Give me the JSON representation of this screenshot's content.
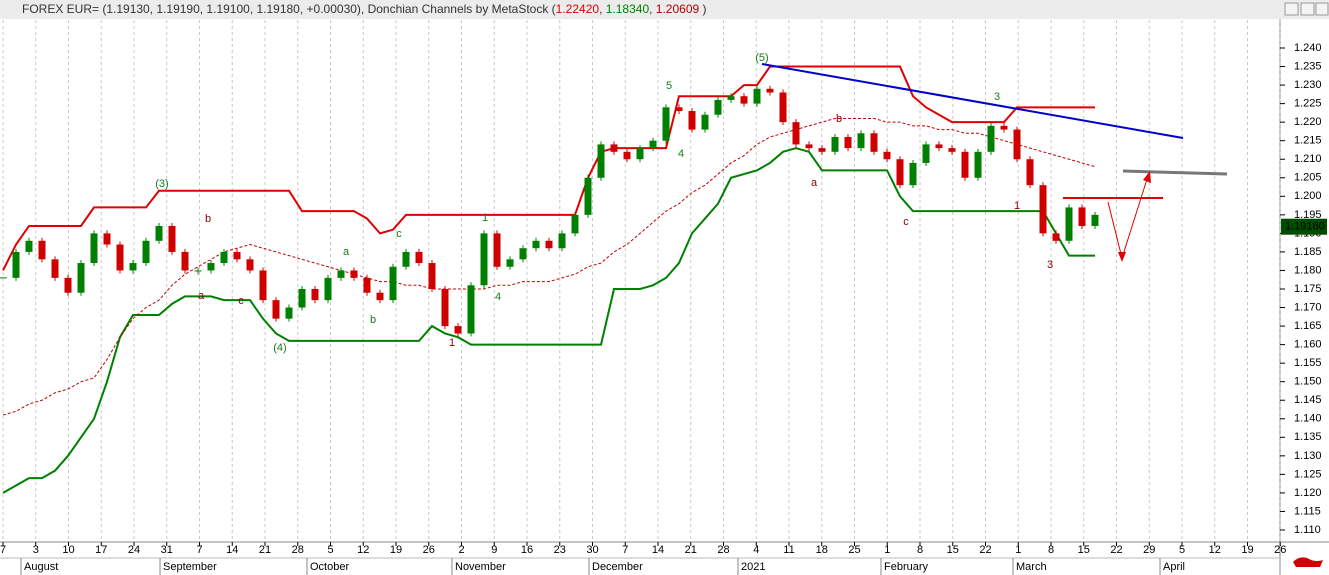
{
  "header": {
    "segments": [
      {
        "text": "FOREX EUR= (1.19130, 1.19190, 1.19100, 1.19180, +0.00030), Donchian Channels by MetaStock (",
        "color": "#333333"
      },
      {
        "text": "1.22420",
        "color": "#e00000"
      },
      {
        "text": ", ",
        "color": "#333333"
      },
      {
        "text": "1.18340",
        "color": "#008000"
      },
      {
        "text": ", ",
        "color": "#333333"
      },
      {
        "text": "1.20609",
        "color": "#b00000"
      },
      {
        "text": " )",
        "color": "#333333"
      }
    ]
  },
  "chart_data": {
    "type": "candlestick",
    "ylim": [
      1.1075,
      1.2425
    ],
    "yticks": [
      {
        "value": 1.11,
        "label": "1.110"
      },
      {
        "value": 1.115,
        "label": "1.115"
      },
      {
        "value": 1.12,
        "label": "1.120"
      },
      {
        "value": 1.125,
        "label": "1.125"
      },
      {
        "value": 1.13,
        "label": "1.130"
      },
      {
        "value": 1.135,
        "label": "1.135"
      },
      {
        "value": 1.14,
        "label": "1.140"
      },
      {
        "value": 1.145,
        "label": "1.145"
      },
      {
        "value": 1.15,
        "label": "1.150"
      },
      {
        "value": 1.155,
        "label": "1.155"
      },
      {
        "value": 1.16,
        "label": "1.160"
      },
      {
        "value": 1.165,
        "label": "1.165"
      },
      {
        "value": 1.17,
        "label": "1.170"
      },
      {
        "value": 1.175,
        "label": "1.175"
      },
      {
        "value": 1.18,
        "label": "1.180"
      },
      {
        "value": 1.185,
        "label": "1.185"
      },
      {
        "value": 1.19,
        "label": "1.190"
      },
      {
        "value": 1.195,
        "label": "1.195"
      },
      {
        "value": 1.2,
        "label": "1.200"
      },
      {
        "value": 1.205,
        "label": "1.205"
      },
      {
        "value": 1.21,
        "label": "1.210"
      },
      {
        "value": 1.215,
        "label": "1.215"
      },
      {
        "value": 1.22,
        "label": "1.220"
      },
      {
        "value": 1.225,
        "label": "1.225"
      },
      {
        "value": 1.23,
        "label": "1.230"
      },
      {
        "value": 1.235,
        "label": "1.235"
      },
      {
        "value": 1.24,
        "label": "1.240"
      }
    ],
    "categories": [
      "7",
      "3",
      "10",
      "17",
      "24",
      "31",
      "7",
      "14",
      "21",
      "28",
      "5",
      "12",
      "19",
      "26",
      "2",
      "9",
      "16",
      "23",
      "30",
      "7",
      "14",
      "21",
      "28",
      "4",
      "11",
      "18",
      "25",
      "1",
      "8",
      "15",
      "22",
      "1",
      "8",
      "15",
      "22",
      "29",
      "5",
      "12",
      "19",
      "26"
    ],
    "months": [
      "August",
      "September",
      "October",
      "November",
      "December",
      "2021",
      "February",
      "March",
      "April"
    ],
    "grid": true,
    "last_price": {
      "value": 1.1918,
      "label": "1.19180"
    },
    "price": {
      "up_color": "#008000",
      "down_color": "#d00000",
      "values": [
        1.178,
        1.185,
        1.188,
        1.183,
        1.178,
        1.174,
        1.182,
        1.19,
        1.187,
        1.18,
        1.182,
        1.188,
        1.192,
        1.185,
        1.18,
        1.18,
        1.182,
        1.185,
        1.183,
        1.18,
        1.172,
        1.167,
        1.17,
        1.175,
        1.172,
        1.178,
        1.18,
        1.178,
        1.174,
        1.172,
        1.181,
        1.185,
        1.182,
        1.175,
        1.165,
        1.163,
        1.176,
        1.19,
        1.181,
        1.183,
        1.186,
        1.188,
        1.186,
        1.19,
        1.195,
        1.205,
        1.214,
        1.212,
        1.21,
        1.213,
        1.215,
        1.224,
        1.223,
        1.218,
        1.222,
        1.226,
        1.227,
        1.225,
        1.229,
        1.228,
        1.22,
        1.214,
        1.213,
        1.212,
        1.216,
        1.213,
        1.217,
        1.212,
        1.21,
        1.203,
        1.209,
        1.214,
        1.213,
        1.212,
        1.205,
        1.212,
        1.219,
        1.218,
        1.21,
        1.203,
        1.19,
        1.188,
        1.197,
        1.192,
        1.195
      ]
    },
    "channels": [
      {
        "color": "#e00000",
        "dashed": false,
        "values": [
          1.18,
          1.187,
          1.192,
          1.192,
          1.192,
          1.192,
          1.192,
          1.197,
          1.197,
          1.197,
          1.197,
          1.197,
          1.2015,
          1.2015,
          1.2015,
          1.2015,
          1.2015,
          1.2015,
          1.2015,
          1.2015,
          1.2015,
          1.2015,
          1.2015,
          1.196,
          1.196,
          1.196,
          1.196,
          1.196,
          1.194,
          1.19,
          1.191,
          1.195,
          1.195,
          1.195,
          1.195,
          1.195,
          1.195,
          1.195,
          1.195,
          1.195,
          1.195,
          1.195,
          1.195,
          1.195,
          1.195,
          1.205,
          1.212,
          1.213,
          1.213,
          1.213,
          1.213,
          1.213,
          1.227,
          1.227,
          1.227,
          1.227,
          1.227,
          1.23,
          1.23,
          1.235,
          1.235,
          1.235,
          1.235,
          1.235,
          1.235,
          1.235,
          1.235,
          1.235,
          1.235,
          1.235,
          1.227,
          1.224,
          1.222,
          1.22,
          1.22,
          1.22,
          1.22,
          1.22,
          1.224,
          1.224,
          1.224,
          1.224,
          1.224,
          1.224,
          1.224
        ]
      },
      {
        "color": "#008000",
        "dashed": false,
        "values": [
          1.12,
          1.122,
          1.124,
          1.124,
          1.126,
          1.13,
          1.135,
          1.14,
          1.15,
          1.162,
          1.168,
          1.168,
          1.168,
          1.171,
          1.173,
          1.173,
          1.173,
          1.172,
          1.172,
          1.172,
          1.167,
          1.163,
          1.161,
          1.161,
          1.161,
          1.161,
          1.161,
          1.161,
          1.161,
          1.161,
          1.161,
          1.161,
          1.161,
          1.165,
          1.163,
          1.162,
          1.16,
          1.16,
          1.16,
          1.16,
          1.16,
          1.16,
          1.16,
          1.16,
          1.16,
          1.16,
          1.16,
          1.175,
          1.175,
          1.175,
          1.176,
          1.178,
          1.182,
          1.19,
          1.194,
          1.198,
          1.205,
          1.206,
          1.207,
          1.209,
          1.212,
          1.213,
          1.212,
          1.207,
          1.207,
          1.207,
          1.207,
          1.207,
          1.207,
          1.2,
          1.196,
          1.196,
          1.196,
          1.196,
          1.196,
          1.196,
          1.196,
          1.196,
          1.196,
          1.196,
          1.196,
          1.19,
          1.184,
          1.184,
          1.184
        ]
      },
      {
        "color": "#c00000",
        "dashed": true,
        "values": [
          1.141,
          1.142,
          1.144,
          1.145,
          1.147,
          1.148,
          1.15,
          1.151,
          1.156,
          1.162,
          1.167,
          1.17,
          1.172,
          1.176,
          1.179,
          1.181,
          1.183,
          1.185,
          1.186,
          1.187,
          1.186,
          1.185,
          1.184,
          1.183,
          1.182,
          1.181,
          1.18,
          1.179,
          1.178,
          1.177,
          1.177,
          1.176,
          1.176,
          1.175,
          1.175,
          1.175,
          1.175,
          1.175,
          1.176,
          1.176,
          1.177,
          1.177,
          1.177,
          1.178,
          1.179,
          1.181,
          1.182,
          1.185,
          1.187,
          1.19,
          1.193,
          1.196,
          1.198,
          1.201,
          1.203,
          1.206,
          1.209,
          1.211,
          1.214,
          1.216,
          1.217,
          1.218,
          1.219,
          1.22,
          1.221,
          1.221,
          1.221,
          1.221,
          1.22,
          1.22,
          1.219,
          1.219,
          1.218,
          1.218,
          1.217,
          1.217,
          1.216,
          1.215,
          1.214,
          1.213,
          1.212,
          1.211,
          1.21,
          1.209,
          1.208
        ]
      }
    ],
    "annotations": [
      {
        "text": "(3)",
        "color": "#1a7a1a"
      },
      {
        "text": "b",
        "color": "#8b0000"
      },
      {
        "text": "a",
        "color": "#8b0000"
      },
      {
        "text": "c",
        "color": "#8b0000"
      },
      {
        "text": "(4)",
        "color": "#1a7a1a"
      },
      {
        "text": "c",
        "color": "#1a7a1a"
      },
      {
        "text": "a",
        "color": "#1a7a1a"
      },
      {
        "text": "b",
        "color": "#1a7a1a"
      },
      {
        "text": "1",
        "color": "#8b0000"
      },
      {
        "text": "1",
        "color": "#1a7a1a"
      },
      {
        "text": "4",
        "color": "#1a7a1a"
      },
      {
        "text": "5",
        "color": "#1a7a1a"
      },
      {
        "text": "4",
        "color": "#1a7a1a"
      },
      {
        "text": "(5)",
        "color": "#1a7a1a"
      },
      {
        "text": "b",
        "color": "#8b0000"
      },
      {
        "text": "a",
        "color": "#8b0000"
      },
      {
        "text": "c",
        "color": "#8b0000"
      },
      {
        "text": "3",
        "color": "#1a7a1a"
      },
      {
        "text": "1",
        "color": "#8b0000"
      },
      {
        "text": "3",
        "color": "#8b0000"
      }
    ]
  }
}
